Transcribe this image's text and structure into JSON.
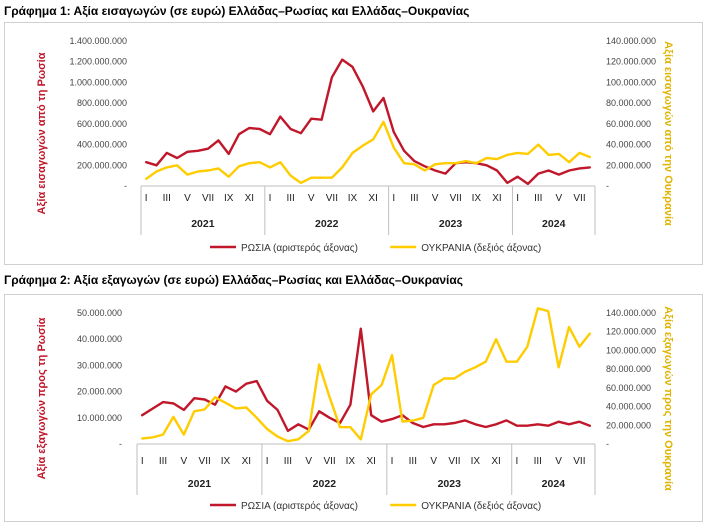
{
  "chart_data": [
    {
      "type": "line",
      "title": "Γράφημα 1: Αξία εισαγωγών (σε ευρώ) Ελλάδας–Ρωσίας και Ελλάδας–Ουκρανίας",
      "ylabel_left": "Αξία εισαγωγών από τη Ρωσία",
      "ylabel_right": "Αξία εισαγωγών από την Ουκρανία",
      "y_left_ticks": [
        "-",
        "200.000.000",
        "400.000.000",
        "600.000.000",
        "800.000.000",
        "1.000.000.000",
        "1.200.000.000",
        "1.400.000.000"
      ],
      "y_right_ticks": [
        "-",
        "20.000.000",
        "40.000.000",
        "60.000.000",
        "80.000.000",
        "100.000.000",
        "120.000.000",
        "140.000.000"
      ],
      "ylim_left": [
        0,
        1400000000
      ],
      "ylim_right": [
        0,
        140000000
      ],
      "month_ticks": [
        "I",
        "III",
        "V",
        "VII",
        "IX",
        "XI",
        "I",
        "III",
        "V",
        "VII",
        "IX",
        "XI",
        "I",
        "III",
        "V",
        "VII",
        "IX",
        "XI",
        "I",
        "III",
        "V",
        "VII"
      ],
      "years": [
        {
          "label": "2021",
          "months": 12
        },
        {
          "label": "2022",
          "months": 12
        },
        {
          "label": "2023",
          "months": 12
        },
        {
          "label": "2024",
          "months": 8
        }
      ],
      "grid": false,
      "legend_position": "bottom",
      "series": [
        {
          "name": "ΡΩΣΙΑ (αριστερός άξονας)",
          "axis": "left",
          "color": "#c0172b",
          "values": [
            230000000,
            200000000,
            320000000,
            270000000,
            330000000,
            340000000,
            360000000,
            440000000,
            310000000,
            500000000,
            560000000,
            550000000,
            500000000,
            670000000,
            550000000,
            510000000,
            650000000,
            640000000,
            1050000000,
            1220000000,
            1150000000,
            960000000,
            720000000,
            850000000,
            520000000,
            340000000,
            240000000,
            190000000,
            150000000,
            120000000,
            220000000,
            230000000,
            220000000,
            200000000,
            150000000,
            30000000,
            90000000,
            20000000,
            120000000,
            150000000,
            110000000,
            150000000,
            170000000,
            180000000
          ]
        },
        {
          "name": "ΟΥΚΡΑΝΙΑ (δεξιός άξονας)",
          "axis": "right",
          "color": "#ffcc00",
          "values": [
            7000000,
            14000000,
            18000000,
            20000000,
            11000000,
            14000000,
            15000000,
            17000000,
            9000000,
            19000000,
            22000000,
            23000000,
            18000000,
            23000000,
            10000000,
            3000000,
            8000000,
            8000000,
            8000000,
            18000000,
            32000000,
            39000000,
            45000000,
            62000000,
            37000000,
            22000000,
            21000000,
            15000000,
            21000000,
            22000000,
            22000000,
            24000000,
            22000000,
            27000000,
            26000000,
            30000000,
            32000000,
            31000000,
            40000000,
            30000000,
            31000000,
            23000000,
            32000000,
            28000000
          ]
        }
      ]
    },
    {
      "type": "line",
      "title": "Γράφημα 2: Αξία εξαγωγών (σε ευρώ) Ελλάδας–Ρωσίας και Ελλάδας–Ουκρανίας",
      "ylabel_left": "Αξία εξαγωγών προς τη Ρωσία",
      "ylabel_right": "Αξία εξαγωγών προς την Ουκρανία",
      "y_left_ticks": [
        "-",
        "10.000.000",
        "20.000.000",
        "30.000.000",
        "40.000.000",
        "50.000.000"
      ],
      "y_right_ticks": [
        "-",
        "20.000.000",
        "40.000.000",
        "60.000.000",
        "80.000.000",
        "100.000.000",
        "120.000.000",
        "140.000.000"
      ],
      "ylim_left": [
        0,
        50000000
      ],
      "ylim_right": [
        0,
        140000000
      ],
      "month_ticks": [
        "I",
        "III",
        "V",
        "VII",
        "IX",
        "XI",
        "I",
        "III",
        "V",
        "VII",
        "IX",
        "XI",
        "I",
        "III",
        "V",
        "VII",
        "IX",
        "XI",
        "I",
        "III",
        "V",
        "VII"
      ],
      "years": [
        {
          "label": "2021",
          "months": 12
        },
        {
          "label": "2022",
          "months": 12
        },
        {
          "label": "2023",
          "months": 12
        },
        {
          "label": "2024",
          "months": 8
        }
      ],
      "grid": false,
      "legend_position": "bottom",
      "series": [
        {
          "name": "ΡΩΣΙΑ (αριστερός άξονας)",
          "axis": "left",
          "color": "#c0172b",
          "values": [
            11000000,
            13500000,
            16000000,
            15500000,
            13000000,
            17500000,
            17000000,
            15000000,
            22000000,
            20000000,
            23000000,
            24000000,
            16500000,
            13000000,
            5000000,
            7500000,
            5500000,
            12500000,
            10000000,
            8000000,
            15000000,
            44000000,
            11000000,
            8500000,
            9500000,
            11000000,
            8000000,
            6500000,
            7500000,
            7500000,
            8000000,
            9000000,
            7500000,
            6500000,
            7500000,
            9000000,
            7000000,
            7000000,
            7500000,
            7000000,
            8500000,
            7500000,
            8500000,
            7000000
          ]
        },
        {
          "name": "ΟΥΚΡΑΝΙΑ (δεξιός άξονας)",
          "axis": "right",
          "color": "#ffcc00",
          "values": [
            6000000,
            7000000,
            10000000,
            29000000,
            10000000,
            35000000,
            37000000,
            50000000,
            44000000,
            38000000,
            39000000,
            28000000,
            16000000,
            8000000,
            3000000,
            5000000,
            14000000,
            85000000,
            50000000,
            18000000,
            18000000,
            5000000,
            53000000,
            63000000,
            95000000,
            24000000,
            25000000,
            28000000,
            63000000,
            70000000,
            70000000,
            77000000,
            82000000,
            88000000,
            112000000,
            88000000,
            88000000,
            104000000,
            145000000,
            142000000,
            82000000,
            125000000,
            104000000,
            118000000
          ]
        }
      ]
    }
  ]
}
